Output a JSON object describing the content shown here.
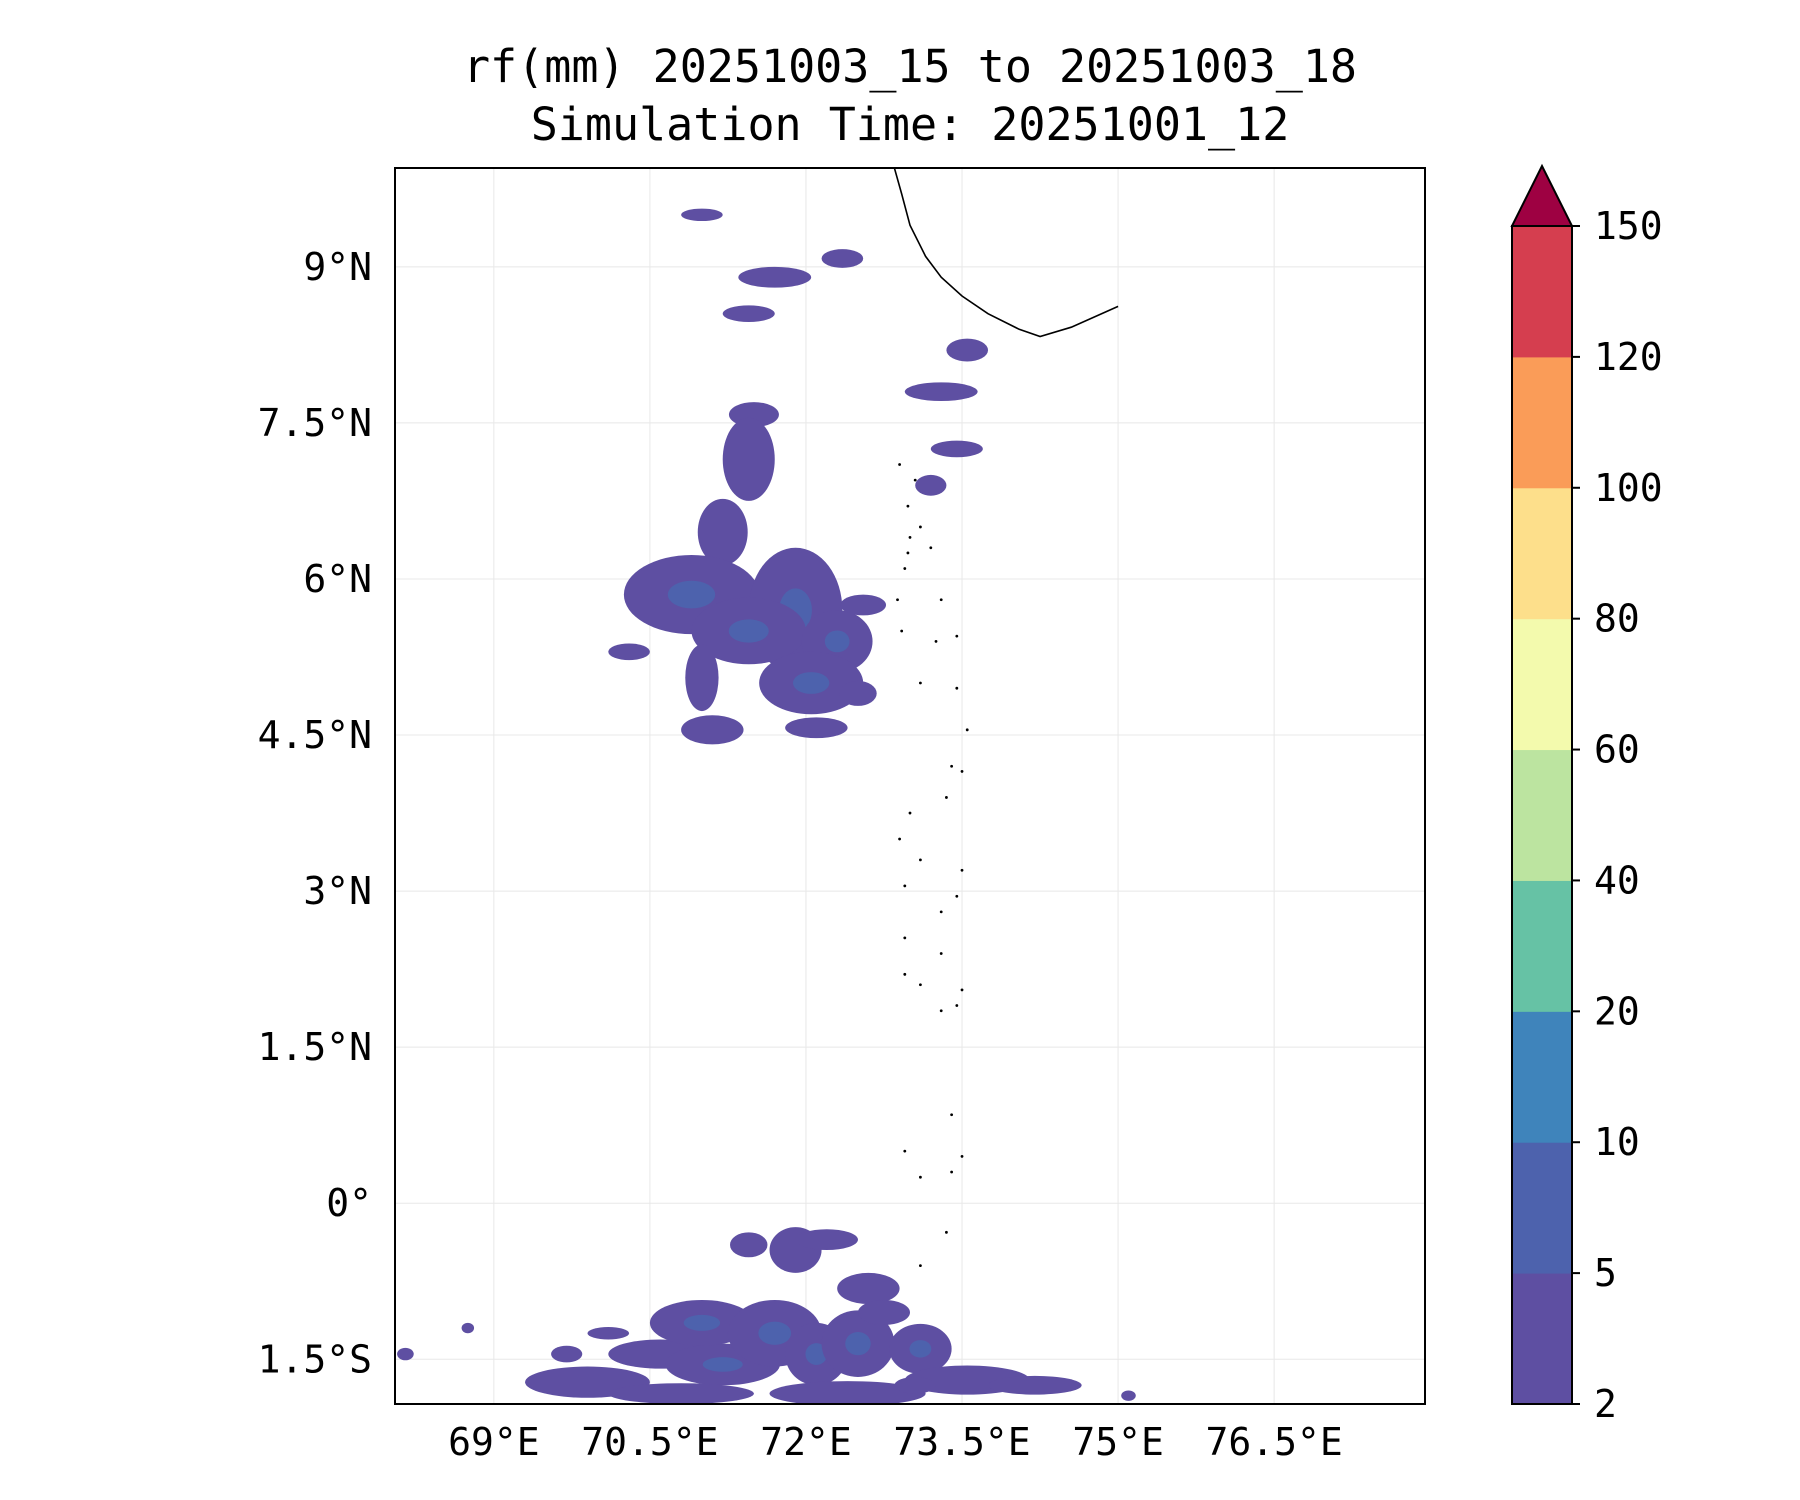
{
  "title": {
    "line1": "rf(mm) 20251003_15 to 20251003_18",
    "line2": "Simulation Time: 20251001_12"
  },
  "map": {
    "variable": "rf",
    "units": "mm",
    "extent": {
      "lon_min": 68.05,
      "lon_max": 77.95,
      "lat_min": -1.93,
      "lat_max": 9.95
    },
    "lon_ticks": [
      {
        "value": 69.0,
        "label": "69°E"
      },
      {
        "value": 70.5,
        "label": "70.5°E"
      },
      {
        "value": 72.0,
        "label": "72°E"
      },
      {
        "value": 73.5,
        "label": "73.5°E"
      },
      {
        "value": 75.0,
        "label": "75°E"
      },
      {
        "value": 76.5,
        "label": "76.5°E"
      }
    ],
    "lat_ticks": [
      {
        "value": 9.0,
        "label": "9°N"
      },
      {
        "value": 7.5,
        "label": "7.5°N"
      },
      {
        "value": 6.0,
        "label": "6°N"
      },
      {
        "value": 4.5,
        "label": "4.5°N"
      },
      {
        "value": 3.0,
        "label": "3°N"
      },
      {
        "value": 1.5,
        "label": "1.5°N"
      },
      {
        "value": 0.0,
        "label": "0°"
      },
      {
        "value": -1.5,
        "label": "1.5°S"
      }
    ],
    "coastline": [
      [
        72.85,
        9.95
      ],
      [
        72.92,
        9.7
      ],
      [
        73.0,
        9.4
      ],
      [
        73.15,
        9.1
      ],
      [
        73.3,
        8.9
      ],
      [
        73.5,
        8.72
      ],
      [
        73.75,
        8.55
      ],
      [
        74.05,
        8.4
      ],
      [
        74.25,
        8.33
      ],
      [
        74.55,
        8.42
      ],
      [
        75.0,
        8.62
      ]
    ],
    "rain_cells": [
      {
        "lon": 71.0,
        "lat": 9.5,
        "dlon": 0.2,
        "dlat": 0.06
      },
      {
        "lon": 71.7,
        "lat": 8.9,
        "dlon": 0.35,
        "dlat": 0.1
      },
      {
        "lon": 71.45,
        "lat": 8.55,
        "dlon": 0.25,
        "dlat": 0.08
      },
      {
        "lon": 72.35,
        "lat": 9.08,
        "dlon": 0.2,
        "dlat": 0.09
      },
      {
        "lon": 73.3,
        "lat": 7.8,
        "dlon": 0.35,
        "dlat": 0.09
      },
      {
        "lon": 73.55,
        "lat": 8.2,
        "dlon": 0.2,
        "dlat": 0.11
      },
      {
        "lon": 71.5,
        "lat": 7.58,
        "dlon": 0.24,
        "dlat": 0.12
      },
      {
        "lon": 71.45,
        "lat": 7.15,
        "dlon": 0.25,
        "dlat": 0.4
      },
      {
        "lon": 73.45,
        "lat": 7.25,
        "dlon": 0.25,
        "dlat": 0.08
      },
      {
        "lon": 71.2,
        "lat": 6.45,
        "dlon": 0.24,
        "dlat": 0.32
      },
      {
        "lon": 70.9,
        "lat": 5.85,
        "dlon": 0.65,
        "dlat": 0.38
      },
      {
        "lon": 71.9,
        "lat": 5.7,
        "dlon": 0.45,
        "dlat": 0.6
      },
      {
        "lon": 71.45,
        "lat": 5.5,
        "dlon": 0.55,
        "dlat": 0.32
      },
      {
        "lon": 72.3,
        "lat": 5.4,
        "dlon": 0.34,
        "dlat": 0.3
      },
      {
        "lon": 71.0,
        "lat": 5.05,
        "dlon": 0.16,
        "dlat": 0.32
      },
      {
        "lon": 72.05,
        "lat": 5.0,
        "dlon": 0.5,
        "dlat": 0.3
      },
      {
        "lon": 70.3,
        "lat": 5.3,
        "dlon": 0.2,
        "dlat": 0.08
      },
      {
        "lon": 71.1,
        "lat": 4.55,
        "dlon": 0.3,
        "dlat": 0.14
      },
      {
        "lon": 72.1,
        "lat": 4.57,
        "dlon": 0.3,
        "dlat": 0.1
      },
      {
        "lon": 72.5,
        "lat": 4.9,
        "dlon": 0.18,
        "dlat": 0.12
      },
      {
        "lon": 72.55,
        "lat": 5.75,
        "dlon": 0.22,
        "dlat": 0.1
      },
      {
        "lon": 73.2,
        "lat": 6.9,
        "dlon": 0.15,
        "dlat": 0.1
      },
      {
        "lon": 69.9,
        "lat": -1.72,
        "dlon": 0.6,
        "dlat": 0.15
      },
      {
        "lon": 70.6,
        "lat": -1.45,
        "dlon": 0.5,
        "dlat": 0.14
      },
      {
        "lon": 71.2,
        "lat": -1.55,
        "dlon": 0.55,
        "dlat": 0.2
      },
      {
        "lon": 71.0,
        "lat": -1.15,
        "dlon": 0.5,
        "dlat": 0.22
      },
      {
        "lon": 71.7,
        "lat": -1.25,
        "dlon": 0.45,
        "dlat": 0.32
      },
      {
        "lon": 72.1,
        "lat": -1.45,
        "dlon": 0.3,
        "dlat": 0.3
      },
      {
        "lon": 72.5,
        "lat": -1.35,
        "dlon": 0.35,
        "dlat": 0.32
      },
      {
        "lon": 72.6,
        "lat": -0.82,
        "dlon": 0.3,
        "dlat": 0.15
      },
      {
        "lon": 73.1,
        "lat": -1.4,
        "dlon": 0.3,
        "dlat": 0.24
      },
      {
        "lon": 73.55,
        "lat": -1.7,
        "dlon": 0.6,
        "dlat": 0.14
      },
      {
        "lon": 72.4,
        "lat": -1.83,
        "dlon": 0.75,
        "dlat": 0.12
      },
      {
        "lon": 70.8,
        "lat": -1.83,
        "dlon": 0.7,
        "dlat": 0.1
      },
      {
        "lon": 74.2,
        "lat": -1.75,
        "dlon": 0.45,
        "dlat": 0.09
      },
      {
        "lon": 71.9,
        "lat": -0.45,
        "dlon": 0.25,
        "dlat": 0.22
      },
      {
        "lon": 72.2,
        "lat": -0.35,
        "dlon": 0.3,
        "dlat": 0.1
      },
      {
        "lon": 71.45,
        "lat": -0.4,
        "dlon": 0.18,
        "dlat": 0.12
      },
      {
        "lon": 70.1,
        "lat": -1.25,
        "dlon": 0.2,
        "dlat": 0.06
      },
      {
        "lon": 69.7,
        "lat": -1.45,
        "dlon": 0.15,
        "dlat": 0.08
      },
      {
        "lon": 68.75,
        "lat": -1.2,
        "dlon": 0.06,
        "dlat": 0.05
      },
      {
        "lon": 68.15,
        "lat": -1.45,
        "dlon": 0.08,
        "dlat": 0.06
      },
      {
        "lon": 75.1,
        "lat": -1.85,
        "dlon": 0.07,
        "dlat": 0.05
      },
      {
        "lon": 73.05,
        "lat": -1.75,
        "dlon": 0.2,
        "dlat": 0.08
      },
      {
        "lon": 72.75,
        "lat": -1.05,
        "dlon": 0.25,
        "dlat": 0.12
      }
    ],
    "atoll_dots": [
      [
        72.9,
        7.1
      ],
      [
        73.05,
        6.95
      ],
      [
        72.98,
        6.7
      ],
      [
        73.1,
        6.5
      ],
      [
        73.2,
        6.3
      ],
      [
        73.0,
        6.4
      ],
      [
        72.95,
        6.1
      ],
      [
        72.88,
        5.8
      ],
      [
        72.92,
        5.5
      ],
      [
        73.3,
        5.8
      ],
      [
        73.45,
        5.45
      ],
      [
        73.25,
        5.4
      ],
      [
        73.1,
        5.0
      ],
      [
        73.45,
        4.95
      ],
      [
        73.55,
        4.55
      ],
      [
        73.4,
        4.2
      ],
      [
        73.5,
        4.15
      ],
      [
        73.35,
        3.9
      ],
      [
        73.0,
        3.75
      ],
      [
        72.9,
        3.5
      ],
      [
        73.1,
        3.3
      ],
      [
        72.95,
        3.05
      ],
      [
        73.5,
        3.2
      ],
      [
        73.45,
        2.95
      ],
      [
        73.3,
        2.8
      ],
      [
        72.95,
        2.55
      ],
      [
        73.3,
        2.4
      ],
      [
        72.95,
        2.2
      ],
      [
        73.1,
        2.1
      ],
      [
        73.5,
        2.05
      ],
      [
        73.45,
        1.9
      ],
      [
        73.3,
        1.85
      ],
      [
        73.4,
        0.85
      ],
      [
        72.95,
        0.5
      ],
      [
        73.1,
        0.25
      ],
      [
        73.4,
        0.3
      ],
      [
        73.5,
        0.45
      ],
      [
        73.35,
        -0.28
      ],
      [
        73.1,
        -0.6
      ],
      [
        72.98,
        6.25
      ]
    ],
    "grid": true
  },
  "colorbar": {
    "levels": [
      2,
      5,
      10,
      20,
      40,
      60,
      80,
      100,
      120,
      150
    ],
    "colors": [
      "#5e4fa2",
      "#4d62ad",
      "#3f84bb",
      "#66c2a5",
      "#bce4a0",
      "#f3faad",
      "#fddf8b",
      "#fa9c58",
      "#d53e4f"
    ],
    "extend_color": "#9e0142",
    "extend": "max",
    "tick_labels": [
      "2",
      "5",
      "10",
      "20",
      "40",
      "60",
      "80",
      "100",
      "120",
      "150"
    ]
  },
  "colors": {
    "rain_fill": "#5e4fa2",
    "rain_core": "#4d62ad",
    "coastline": "#000000",
    "grid": "#e8e8e8"
  }
}
